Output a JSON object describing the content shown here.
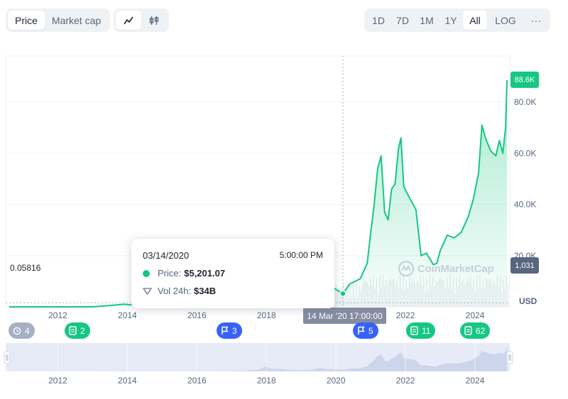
{
  "toolbar": {
    "mode_tabs": [
      {
        "label": "Price",
        "active": true
      },
      {
        "label": "Market cap",
        "active": false
      }
    ],
    "chart_type_icons": [
      {
        "icon": "line-chart-icon",
        "active": true
      },
      {
        "icon": "candlestick-icon",
        "active": false
      }
    ],
    "ranges": [
      {
        "label": "1D",
        "active": false
      },
      {
        "label": "7D",
        "active": false
      },
      {
        "label": "1M",
        "active": false
      },
      {
        "label": "1Y",
        "active": false
      },
      {
        "label": "All",
        "active": true
      }
    ],
    "log_label": "LOG",
    "more_label": "···"
  },
  "tooltip": {
    "date": "03/14/2020",
    "time": "5:00:00 PM",
    "price_label": "Price:",
    "price_value": "$5,201.07",
    "vol_label": "Vol 24h:",
    "vol_value": "$34B"
  },
  "labels": {
    "current_price": "88.6K",
    "current_volume": "1,031",
    "start_price": "0.05816",
    "currency": "USD",
    "crosshair_date": "14 Mar '20 17:00:00",
    "watermark": "CoinMarketCap"
  },
  "markers": [
    {
      "icon": "history-icon",
      "count": "4",
      "color": "grey"
    },
    {
      "icon": "document-icon",
      "count": "2",
      "color": "green"
    },
    {
      "icon": "flag-icon",
      "count": "3",
      "color": "blue"
    },
    {
      "icon": "flag-icon",
      "count": "5",
      "color": "blue"
    },
    {
      "icon": "document-icon",
      "count": "11",
      "color": "green"
    },
    {
      "icon": "document-icon",
      "count": "62",
      "color": "green"
    }
  ],
  "colors": {
    "up": "#16c784",
    "grid": "#eff2f5",
    "volume": "#d8dde6",
    "navigator": "#e7ebf7",
    "accent_blue": "#3861fb"
  },
  "chart_data": {
    "type": "area",
    "series": [
      {
        "x": [
          2010.6,
          2011.0,
          2011.4,
          2011.5,
          2011.9,
          2012.5,
          2013.0,
          2013.9,
          2014.1,
          2014.5,
          2015.0,
          2015.5,
          2016.0,
          2016.5,
          2017.0,
          2017.4,
          2017.8,
          2017.96,
          2018.1,
          2018.5,
          2018.9,
          2019.3,
          2019.5,
          2019.7,
          2019.95,
          2020.2,
          2020.4,
          2020.7,
          2020.9,
          2021.0,
          2021.1,
          2021.2,
          2021.3,
          2021.4,
          2021.5,
          2021.6,
          2021.7,
          2021.8,
          2021.87,
          2021.95,
          2022.1,
          2022.3,
          2022.45,
          2022.6,
          2022.8,
          2022.9,
          2023.0,
          2023.2,
          2023.4,
          2023.6,
          2023.8,
          2023.95,
          2024.1,
          2024.2,
          2024.3,
          2024.45,
          2024.6,
          2024.7,
          2024.8,
          2024.88,
          2024.92
        ],
        "values": [
          0.06,
          0.3,
          8,
          15,
          3,
          6,
          13,
          1000,
          800,
          600,
          300,
          250,
          430,
          650,
          1000,
          2500,
          6000,
          18000,
          10000,
          7000,
          3500,
          5000,
          11000,
          8500,
          7200,
          5201,
          9000,
          11000,
          17000,
          29000,
          40000,
          54000,
          59000,
          37000,
          34000,
          46000,
          48000,
          62000,
          66000,
          47000,
          43000,
          38000,
          20000,
          21000,
          16500,
          17000,
          22000,
          28000,
          27000,
          29000,
          35000,
          42000,
          52000,
          71000,
          66000,
          61000,
          59000,
          65000,
          60000,
          70000,
          88600
        ]
      }
    ],
    "x_ticks": [
      "2012",
      "2014",
      "2016",
      "2018",
      "2020",
      "2022",
      "2024"
    ],
    "y_ticks": [
      "20.0K",
      "40.0K",
      "60.0K",
      "80.0K"
    ],
    "ylim": [
      0,
      98000
    ],
    "xlim": [
      2010.5,
      2025.0
    ],
    "grid": true
  }
}
